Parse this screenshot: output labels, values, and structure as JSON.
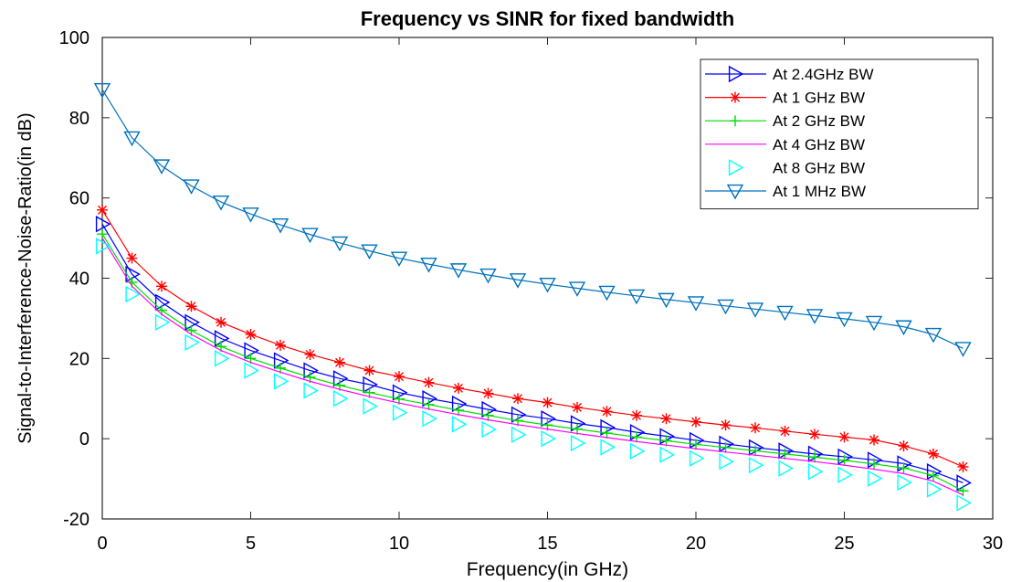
{
  "chart_data": {
    "type": "line",
    "title": "Frequency vs SINR for fixed bandwidth",
    "xlabel": "Frequency(in GHz)",
    "ylabel": "Signal-to-Interference-Noise-Ratio(in dB)",
    "xlim": [
      0,
      30
    ],
    "ylim": [
      -20,
      100
    ],
    "xticks": [
      0,
      5,
      10,
      15,
      20,
      25,
      30
    ],
    "yticks": [
      -20,
      0,
      20,
      40,
      60,
      80,
      100
    ],
    "grid": false,
    "legend_position": "top-right",
    "x": [
      0,
      1,
      2,
      3,
      4,
      5,
      6,
      7,
      8,
      9,
      10,
      11,
      12,
      13,
      14,
      15,
      16,
      17,
      18,
      19,
      20,
      21,
      22,
      23,
      24,
      25,
      26,
      27,
      28,
      29
    ],
    "series": [
      {
        "name": "At 2.4GHz BW",
        "color": "#0000ff",
        "marker": "triangle-right",
        "line": true,
        "values": [
          53.5,
          41,
          34,
          29,
          25,
          22,
          19.5,
          17,
          15,
          13.5,
          11.5,
          10,
          8.7,
          7.3,
          6,
          5,
          3.8,
          2.8,
          1.6,
          0.6,
          -0.4,
          -1.3,
          -2.2,
          -3,
          -3.8,
          -4.5,
          -5.3,
          -6.2,
          -8.2,
          -11
        ]
      },
      {
        "name": "At 1 GHz BW",
        "color": "#ff0000",
        "marker": "asterisk",
        "line": true,
        "values": [
          57,
          45,
          38,
          33,
          29,
          26,
          23.3,
          21,
          19,
          17,
          15.5,
          14,
          12.6,
          11.3,
          10,
          9,
          7.8,
          6.8,
          5.8,
          5,
          4.2,
          3.4,
          2.7,
          1.9,
          1.1,
          0.4,
          -0.3,
          -1.8,
          -3.8,
          -7
        ]
      },
      {
        "name": "At 2 GHz BW",
        "color": "#00dd00",
        "marker": "plus",
        "line": true,
        "values": [
          51,
          39,
          32,
          27,
          23,
          20,
          17.6,
          15.3,
          13.3,
          11.5,
          9.9,
          8.5,
          7.1,
          5.8,
          4.5,
          3.4,
          2.4,
          1.4,
          0.4,
          -0.5,
          -1.4,
          -2.2,
          -3,
          -3.8,
          -4.6,
          -5.4,
          -6.3,
          -7.3,
          -9.2,
          -13
        ]
      },
      {
        "name": "At 4 GHz BW",
        "color": "#ff00ff",
        "marker": "none",
        "line": true,
        "values": [
          50,
          38,
          31,
          26,
          22,
          19,
          16.6,
          14.3,
          12.3,
          10.5,
          8.9,
          7.4,
          6,
          4.7,
          3.5,
          2.4,
          1.3,
          0.3,
          -0.7,
          -1.6,
          -2.5,
          -3.3,
          -4.1,
          -4.9,
          -5.7,
          -6.6,
          -7.6,
          -8.7,
          -10.6,
          -14
        ]
      },
      {
        "name": "At 8 GHz BW",
        "color": "#00ffff",
        "marker": "triangle-right",
        "line": false,
        "values": [
          48,
          36,
          29,
          24,
          20,
          17,
          14.3,
          12,
          10,
          8.1,
          6.5,
          5,
          3.6,
          2.3,
          1,
          0,
          -1.1,
          -2.1,
          -3.1,
          -4,
          -4.9,
          -5.7,
          -6.6,
          -7.4,
          -8.2,
          -9,
          -9.9,
          -10.9,
          -12.6,
          -16
        ]
      },
      {
        "name": "At 1 MHz BW",
        "color": "#0072bd",
        "marker": "triangle-down",
        "line": true,
        "values": [
          87,
          75,
          68,
          63,
          59,
          56,
          53.3,
          50.9,
          48.8,
          46.8,
          45,
          43.5,
          42.1,
          40.8,
          39.6,
          38.5,
          37.5,
          36.5,
          35.6,
          34.7,
          33.9,
          33.1,
          32.3,
          31.5,
          30.7,
          29.9,
          29,
          27.9,
          26,
          22.5
        ]
      }
    ]
  }
}
